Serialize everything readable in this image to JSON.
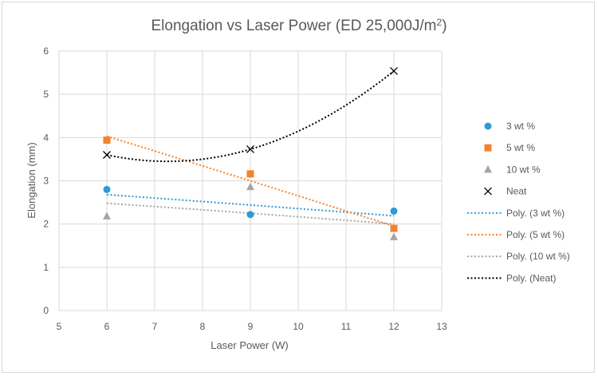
{
  "chart_data": {
    "type": "scatter",
    "title": "Elongation vs Laser Power (ED 25,000J/m",
    "title_superscript": "2",
    "title_suffix": ")",
    "xlabel": "Laser Power (W)",
    "ylabel": "Elongation (mm)",
    "xlim": [
      5,
      13
    ],
    "ylim": [
      0,
      6
    ],
    "xticks": [
      "5",
      "6",
      "7",
      "8",
      "9",
      "10",
      "11",
      "12",
      "13"
    ],
    "yticks": [
      "0",
      "1",
      "2",
      "3",
      "4",
      "5",
      "6"
    ],
    "grid": "both",
    "legend_position": "right",
    "x": [
      6,
      9,
      12
    ],
    "series": [
      {
        "name": "3 wt %",
        "values": [
          2.8,
          2.22,
          2.3
        ],
        "marker": "circle",
        "color": "#2e9ad6"
      },
      {
        "name": "5 wt %",
        "values": [
          3.94,
          3.16,
          1.9
        ],
        "marker": "square",
        "color": "#f5822a"
      },
      {
        "name": "10 wt %",
        "values": [
          2.18,
          2.86,
          1.7
        ],
        "marker": "triangle",
        "color": "#a6a6a6"
      },
      {
        "name": "Neat",
        "values": [
          3.6,
          3.73,
          5.54
        ],
        "marker": "x",
        "color": "#000000"
      }
    ],
    "trendlines": [
      {
        "name": "Poly. (3 wt %)",
        "color": "#2e9ad6",
        "values": [
          2.68,
          2.44,
          2.19
        ],
        "order": 2
      },
      {
        "name": "Poly. (5 wt %)",
        "color": "#f5822a",
        "values": [
          4.03,
          3.0,
          1.95
        ],
        "order": 2
      },
      {
        "name": "Poly. (10 wt %)",
        "color": "#a6a6a6",
        "values": [
          2.48,
          2.25,
          2.0
        ],
        "order": 2
      },
      {
        "name": "Poly. (Neat)",
        "color": "#000000",
        "values": [
          3.6,
          3.73,
          5.54
        ],
        "order": 2
      }
    ]
  }
}
